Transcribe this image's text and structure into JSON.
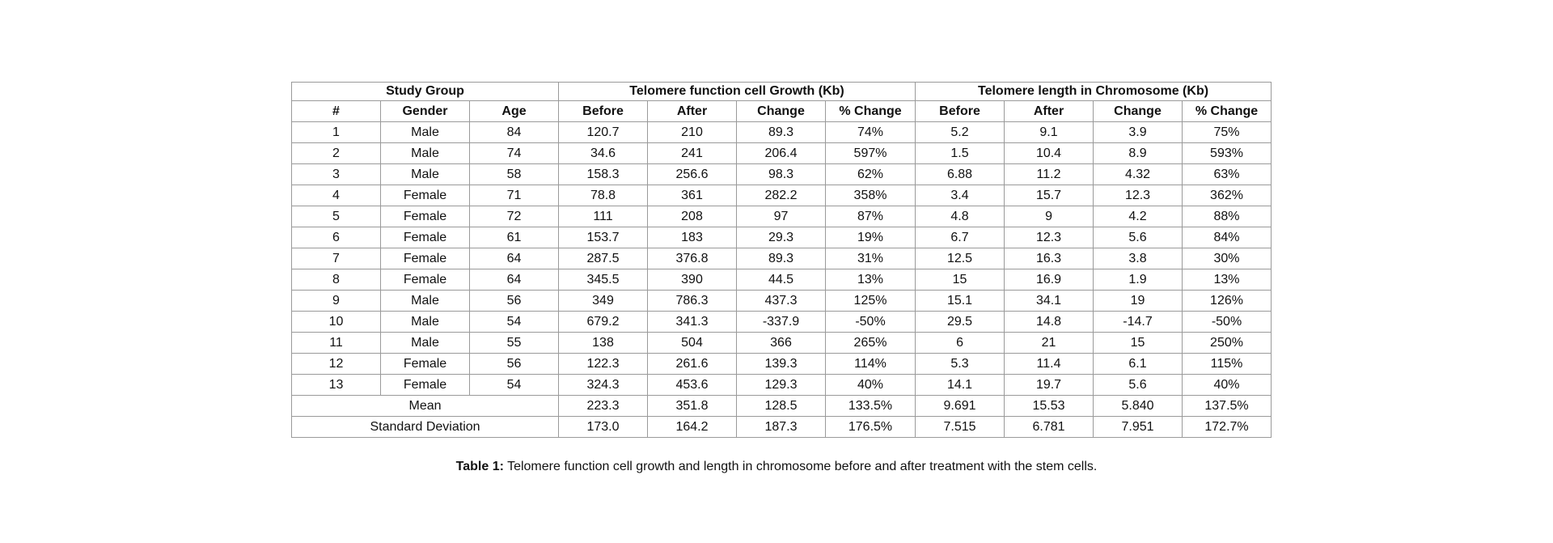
{
  "table": {
    "group_header": "Study Group",
    "growth_header": "Telomere function cell Growth (Kb)",
    "length_header": "Telomere length in Chromosome (Kb)",
    "col_num": "#",
    "col_gender": "Gender",
    "col_age": "Age",
    "sub_headers": [
      "Before",
      "After",
      "Change",
      "% Change",
      "Before",
      "After",
      "Change",
      "% Change"
    ],
    "rows": [
      [
        "1",
        "Male",
        "84",
        "120.7",
        "210",
        "89.3",
        "74%",
        "5.2",
        "9.1",
        "3.9",
        "75%"
      ],
      [
        "2",
        "Male",
        "74",
        "34.6",
        "241",
        "206.4",
        "597%",
        "1.5",
        "10.4",
        "8.9",
        "593%"
      ],
      [
        "3",
        "Male",
        "58",
        "158.3",
        "256.6",
        "98.3",
        "62%",
        "6.88",
        "11.2",
        "4.32",
        "63%"
      ],
      [
        "4",
        "Female",
        "71",
        "78.8",
        "361",
        "282.2",
        "358%",
        "3.4",
        "15.7",
        "12.3",
        "362%"
      ],
      [
        "5",
        "Female",
        "72",
        "111",
        "208",
        "97",
        "87%",
        "4.8",
        "9",
        "4.2",
        "88%"
      ],
      [
        "6",
        "Female",
        "61",
        "153.7",
        "183",
        "29.3",
        "19%",
        "6.7",
        "12.3",
        "5.6",
        "84%"
      ],
      [
        "7",
        "Female",
        "64",
        "287.5",
        "376.8",
        "89.3",
        "31%",
        "12.5",
        "16.3",
        "3.8",
        "30%"
      ],
      [
        "8",
        "Female",
        "64",
        "345.5",
        "390",
        "44.5",
        "13%",
        "15",
        "16.9",
        "1.9",
        "13%"
      ],
      [
        "9",
        "Male",
        "56",
        "349",
        "786.3",
        "437.3",
        "125%",
        "15.1",
        "34.1",
        "19",
        "126%"
      ],
      [
        "10",
        "Male",
        "54",
        "679.2",
        "341.3",
        "-337.9",
        "-50%",
        "29.5",
        "14.8",
        "-14.7",
        "-50%"
      ],
      [
        "11",
        "Male",
        "55",
        "138",
        "504",
        "366",
        "265%",
        "6",
        "21",
        "15",
        "250%"
      ],
      [
        "12",
        "Female",
        "56",
        "122.3",
        "261.6",
        "139.3",
        "114%",
        "5.3",
        "11.4",
        "6.1",
        "115%"
      ],
      [
        "13",
        "Female",
        "54",
        "324.3",
        "453.6",
        "129.3",
        "40%",
        "14.1",
        "19.7",
        "5.6",
        "40%"
      ]
    ],
    "summary_rows": [
      {
        "label": "Mean",
        "values": [
          "223.3",
          "351.8",
          "128.5",
          "133.5%",
          "9.691",
          "15.53",
          "5.840",
          "137.5%"
        ]
      },
      {
        "label": "Standard Deviation",
        "values": [
          "173.0",
          "164.2",
          "187.3",
          "176.5%",
          "7.515",
          "6.781",
          "7.951",
          "172.7%"
        ]
      }
    ]
  },
  "caption": {
    "label": "Table 1:",
    "text": " Telomere function cell growth and length in chromosome before and after treatment with the stem cells."
  }
}
